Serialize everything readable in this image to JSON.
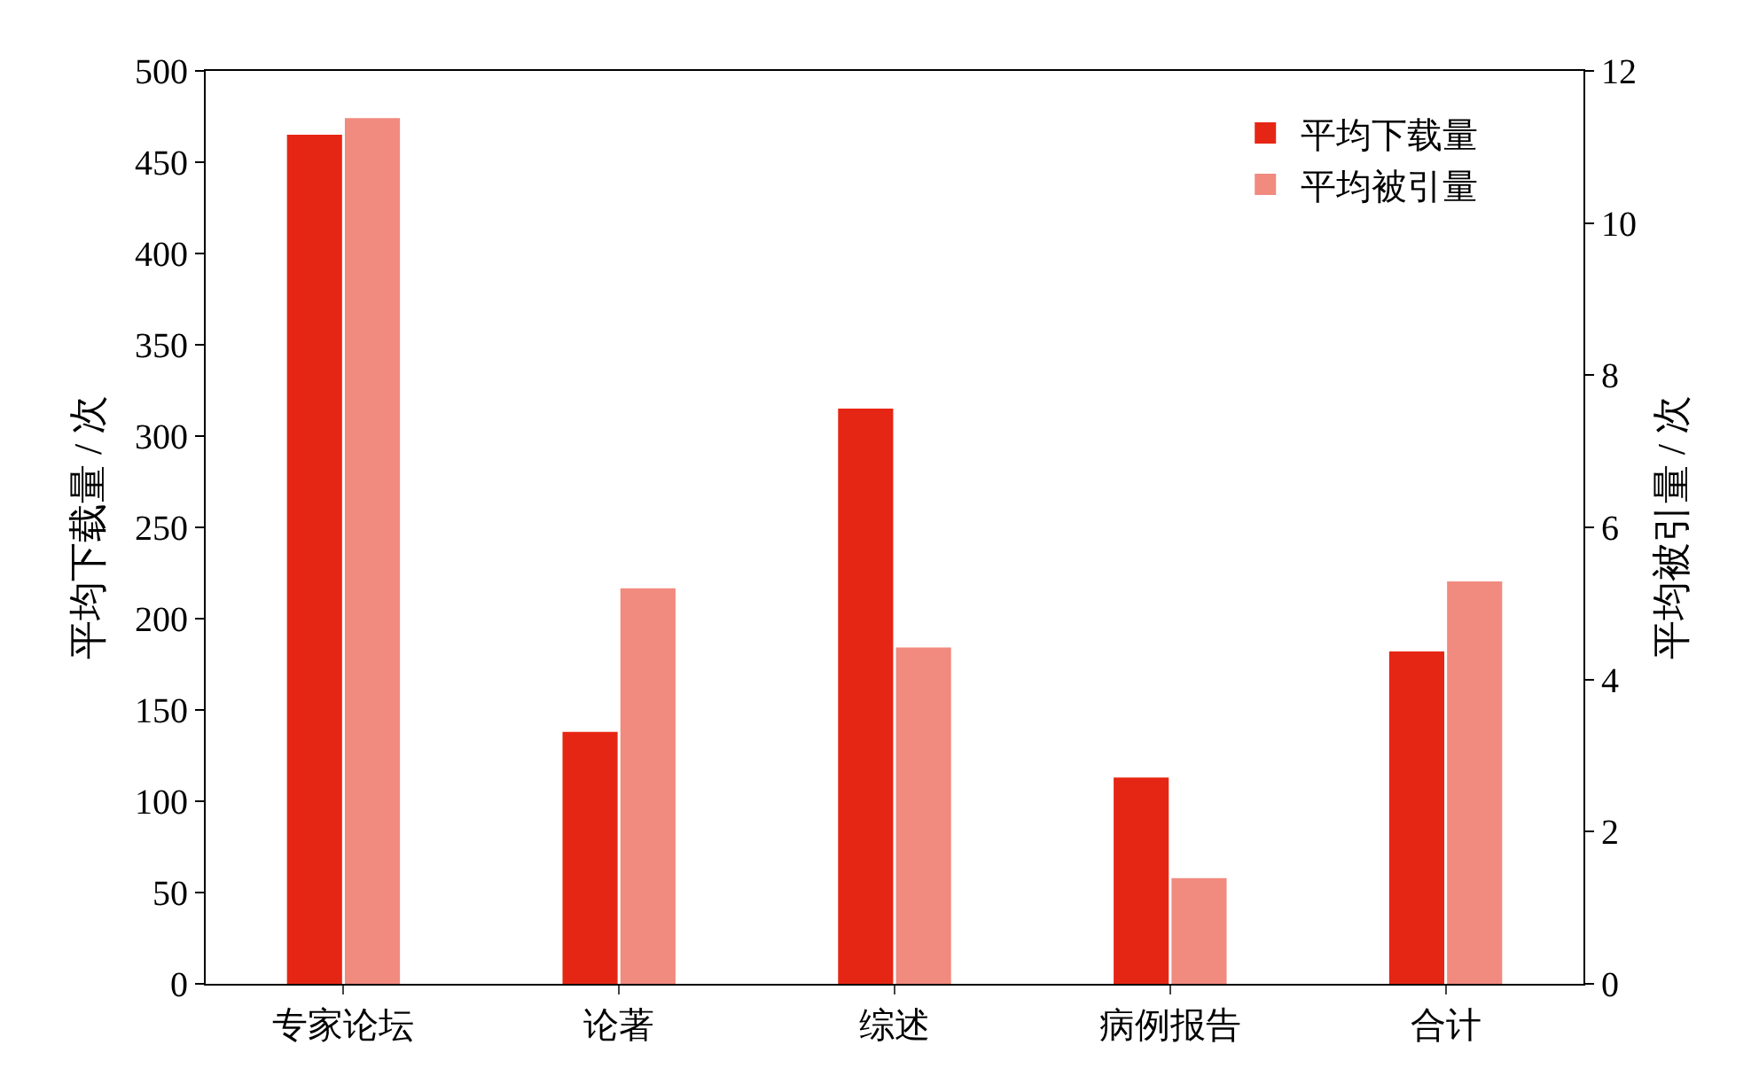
{
  "chart_data": {
    "type": "bar",
    "categories": [
      "专家论坛",
      "论著",
      "综述",
      "病例报告",
      "合计"
    ],
    "ylabel": "平均下载量 / 次",
    "y2label": "平均被引量 / 次",
    "ylim": [
      0,
      500
    ],
    "yticks": [
      0,
      50,
      100,
      150,
      200,
      250,
      300,
      350,
      400,
      450,
      500
    ],
    "y2lim": [
      0,
      12
    ],
    "y2ticks": [
      0,
      2,
      4,
      6,
      8,
      10,
      12
    ],
    "grid": false,
    "legend": "top right",
    "series": [
      {
        "name": "平均下载量",
        "color": "#e62614",
        "values": [
          465,
          138,
          315,
          113,
          182
        ]
      },
      {
        "name": "平均被引量",
        "color": "#f18a7f",
        "axis": "y2",
        "values": [
          11.38,
          5.2,
          4.42,
          1.39,
          5.29
        ]
      }
    ]
  }
}
